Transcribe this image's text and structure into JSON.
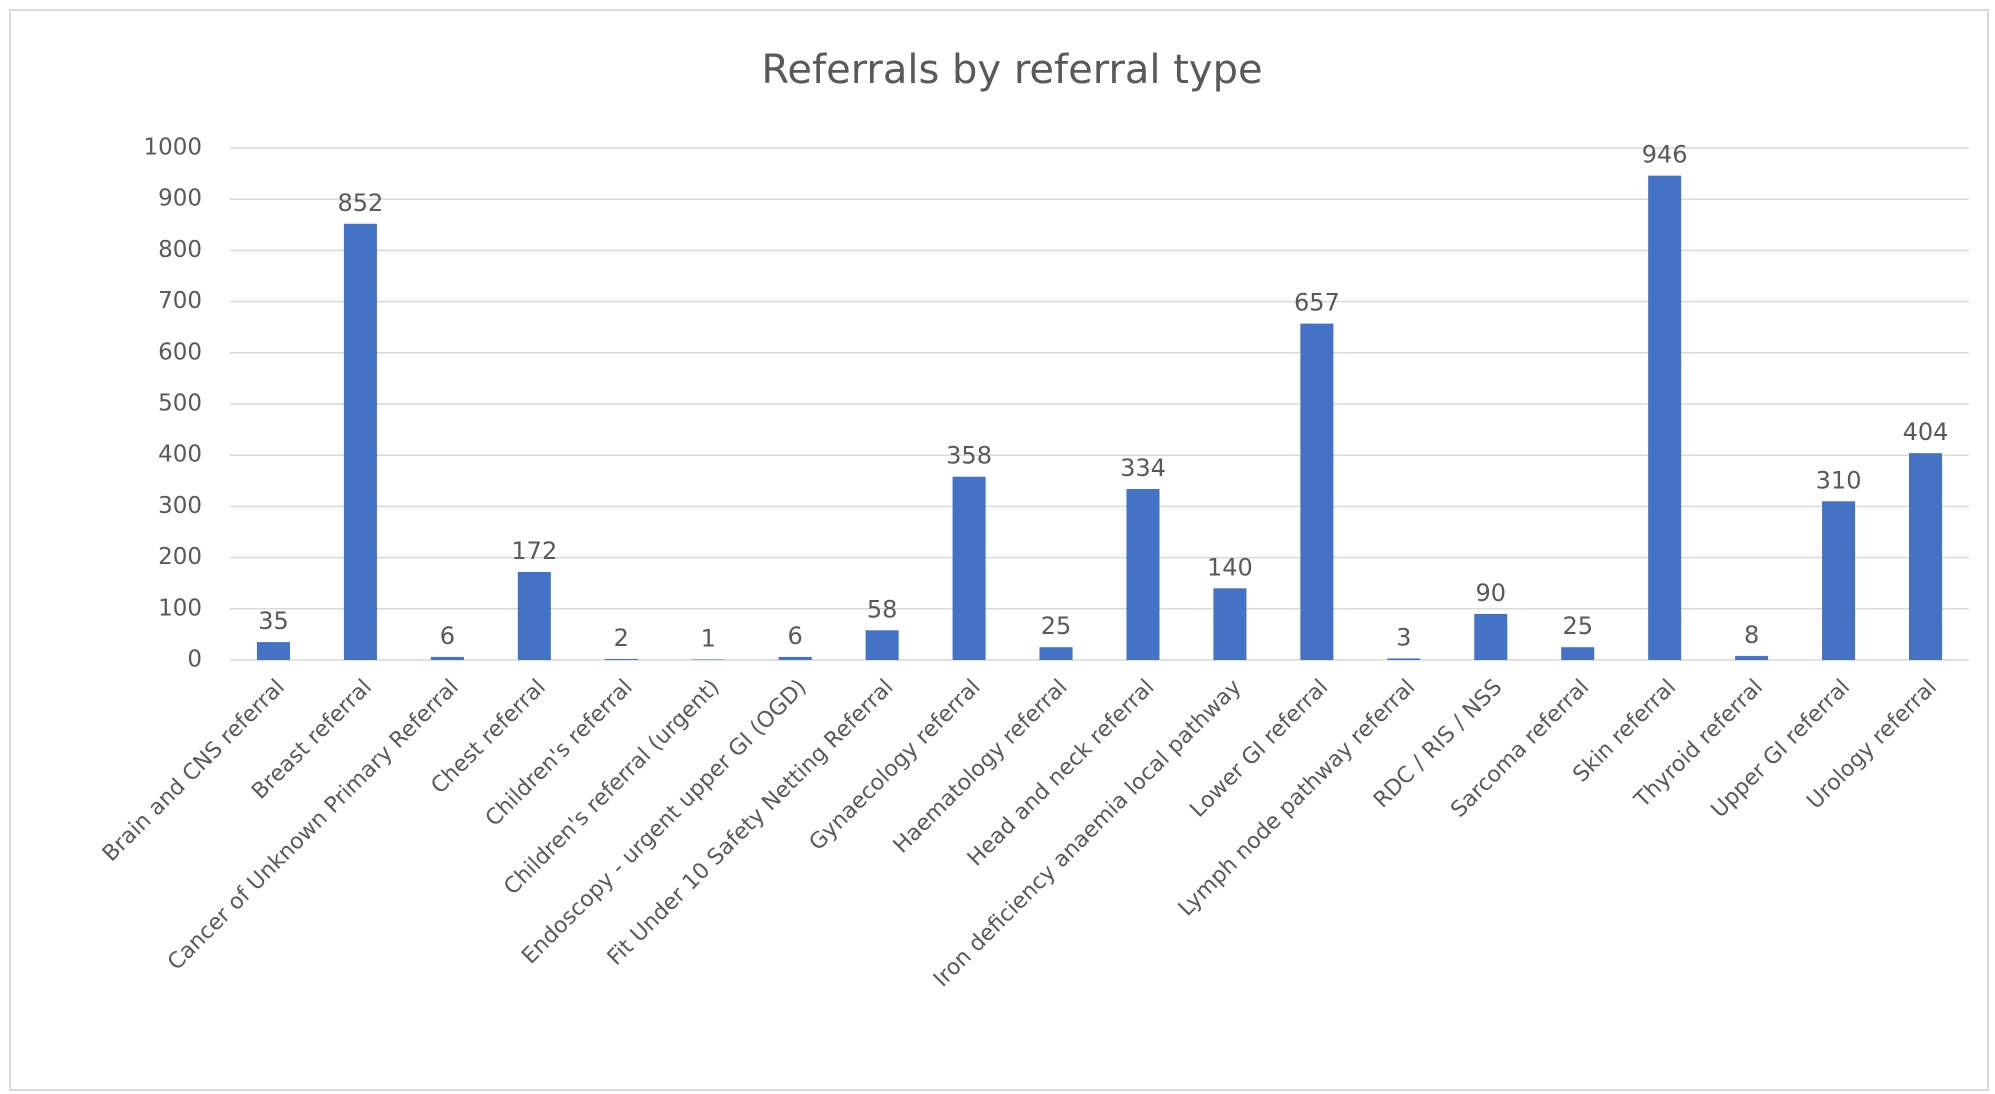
{
  "chart_data": {
    "type": "bar",
    "title": "Referrals by referral type",
    "categories": [
      "Brain and CNS referral",
      "Breast referral",
      "Cancer of Unknown Primary Referral",
      "Chest referral",
      "Children's referral",
      "Children's referral (urgent)",
      "Endoscopy - urgent upper GI (OGD)",
      "Fit Under 10 Safety Netting Referral",
      "Gynaecology referral",
      "Haematology referral",
      "Head and neck referral",
      "Iron deficiency anaemia local pathway",
      "Lower GI referral",
      "Lymph node pathway referral",
      "RDC / RIS / NSS",
      "Sarcoma referral",
      "Skin referral",
      "Thyroid referral",
      "Upper GI referral",
      "Urology referral"
    ],
    "values": [
      35,
      852,
      6,
      172,
      2,
      1,
      6,
      58,
      358,
      25,
      334,
      140,
      657,
      3,
      90,
      25,
      946,
      8,
      310,
      404
    ],
    "color": "#4472c4",
    "ylim": [
      0,
      1000
    ],
    "yticks": [
      0,
      100,
      200,
      300,
      400,
      500,
      600,
      700,
      800,
      900,
      1000
    ],
    "grid": true
  }
}
